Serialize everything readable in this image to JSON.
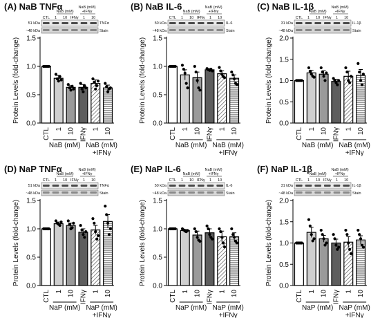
{
  "figure_panels": [
    {
      "label": "(A)",
      "title": "NaB TNFα",
      "ylabel": "Protein Levels (fold-change)",
      "ylim": [
        0,
        1.5
      ],
      "yticks": [
        "0.0",
        "0.5",
        "1.0",
        "1.5"
      ],
      "categories": [
        "CTL",
        "1",
        "10",
        "IFNγ",
        "1",
        "10"
      ],
      "treatment_label": "NaB (mM)",
      "combo_label": "NaB (mM)\n+IFNγ",
      "blot": {
        "kda_target": "51 kDa",
        "target": "TNFα",
        "kda_stain": "~48 kDa",
        "stain": "Stain",
        "header_treat": "NaB (mM)",
        "header_combo": "NaB (mM)\n+IFNγ",
        "lanes": [
          "CTL",
          "1",
          "10",
          "IFNγ",
          "1",
          "10"
        ]
      },
      "values": [
        1.0,
        0.79,
        0.63,
        0.63,
        0.7,
        0.62
      ],
      "errors": [
        0.0,
        0.05,
        0.03,
        0.05,
        0.06,
        0.05
      ],
      "points": [
        [
          1,
          1,
          1,
          1,
          1
        ],
        [
          0.86,
          0.78,
          0.74,
          0.82,
          0.76
        ],
        [
          0.68,
          0.62,
          0.58,
          0.65,
          0.6
        ],
        [
          0.7,
          0.6,
          0.55,
          0.66,
          0.62
        ],
        [
          0.78,
          0.72,
          0.6,
          0.66,
          0.74
        ],
        [
          0.7,
          0.64,
          0.55,
          0.6,
          0.62
        ]
      ]
    },
    {
      "label": "(B)",
      "title": "NaB IL-6",
      "ylabel": "Protein Levels (fold-change)",
      "ylim": [
        0,
        1.5
      ],
      "yticks": [
        "0.0",
        "0.5",
        "1.0",
        "1.5"
      ],
      "categories": [
        "CTL",
        "1",
        "10",
        "IFNγ",
        "1",
        "10"
      ],
      "treatment_label": "NaB (mM)",
      "combo_label": "NaB (mM)\n+IFNγ",
      "blot": {
        "kda_target": "50 kDa",
        "target": "IL-6",
        "kda_stain": "~48 kDa",
        "stain": "Stain",
        "header_treat": "NaB (mM)",
        "header_combo": "NaB (mM)\n+IFNγ",
        "lanes": [
          "CTL",
          "1",
          "10",
          "IFNγ",
          "1",
          "10"
        ]
      },
      "values": [
        1.0,
        0.85,
        0.8,
        0.94,
        0.87,
        0.79
      ],
      "errors": [
        0.0,
        0.09,
        0.1,
        0.02,
        0.05,
        0.06
      ],
      "points": [
        [
          1,
          1,
          1,
          1,
          1
        ],
        [
          1.02,
          0.95,
          0.88,
          0.7,
          0.62
        ],
        [
          1.0,
          0.9,
          0.75,
          0.62,
          0.58
        ],
        [
          0.96,
          0.94,
          0.93,
          0.95,
          0.92
        ],
        [
          0.98,
          0.92,
          0.86,
          0.82,
          0.8
        ],
        [
          0.9,
          0.85,
          0.78,
          0.7,
          0.68
        ]
      ]
    },
    {
      "label": "(C)",
      "title": "NaB IL-1β",
      "ylabel": "Protein Levels (fold-change)",
      "ylim": [
        0,
        2.0
      ],
      "yticks": [
        "0.0",
        "0.5",
        "1.0",
        "1.5",
        "2.0"
      ],
      "categories": [
        "CTL",
        "1",
        "10",
        "IFNγ",
        "1",
        "10"
      ],
      "treatment_label": "NaB (mM)",
      "combo_label": "NaB (mM)\n+IFNγ",
      "blot": {
        "kda_target": "31 kDa",
        "target": "IL-1β",
        "kda_stain": "~48 kDa",
        "stain": "Stain",
        "header_treat": "NaB (mM)",
        "header_combo": "NaB (mM)\n+IFNγ",
        "lanes": [
          "CTL",
          "1",
          "10",
          "IFNγ",
          "1",
          "10"
        ]
      },
      "values": [
        1.0,
        1.18,
        1.15,
        0.98,
        1.1,
        1.12
      ],
      "errors": [
        0.0,
        0.06,
        0.08,
        0.05,
        0.12,
        0.14
      ],
      "points": [
        [
          1,
          1,
          1,
          1,
          1
        ],
        [
          1.3,
          1.22,
          1.15,
          1.1,
          1.08
        ],
        [
          1.3,
          1.2,
          1.1,
          1.0,
          1.18
        ],
        [
          1.05,
          1.0,
          0.95,
          0.9,
          1.0
        ],
        [
          1.3,
          1.2,
          1.0,
          0.95,
          1.1
        ],
        [
          1.4,
          1.2,
          1.0,
          0.9,
          1.15
        ]
      ]
    },
    {
      "label": "(D)",
      "title": "NaP TNFα",
      "ylabel": "Protein Levels (fold-change)",
      "ylim": [
        0,
        1.5
      ],
      "yticks": [
        "0.0",
        "0.5",
        "1.0",
        "1.5"
      ],
      "categories": [
        "CTL",
        "1",
        "10",
        "IFNγ",
        "1",
        "10"
      ],
      "treatment_label": "NaP (mM)",
      "combo_label": "NaP (mM)\n+IFNγ",
      "blot": {
        "kda_target": "51 kDa",
        "target": "TNFα",
        "kda_stain": "~48 kDa",
        "stain": "Stain",
        "header_treat": "NaB (mM)",
        "header_combo": "NaB (mM)\n+IFNγ",
        "lanes": [
          "CTL",
          "1",
          "10",
          "IFNγ",
          "1",
          "10"
        ]
      },
      "values": [
        1.0,
        1.09,
        1.06,
        0.94,
        0.98,
        1.13
      ],
      "errors": [
        0.0,
        0.03,
        0.04,
        0.06,
        0.08,
        0.12
      ],
      "points": [
        [
          1,
          1,
          1,
          1,
          1
        ],
        [
          1.14,
          1.1,
          1.08,
          1.06,
          1.12
        ],
        [
          1.14,
          1.08,
          1.0,
          1.02,
          1.1
        ],
        [
          1.06,
          0.98,
          0.9,
          0.85,
          0.95
        ],
        [
          1.18,
          1.1,
          0.95,
          0.82,
          0.88
        ],
        [
          1.4,
          1.25,
          1.1,
          0.9,
          1.0
        ]
      ]
    },
    {
      "label": "(E)",
      "title": "NaP IL-6",
      "ylabel": "Protein Levels (fold-change)",
      "ylim": [
        0,
        1.5
      ],
      "yticks": [
        "0.0",
        "0.5",
        "1.0",
        "1.5"
      ],
      "categories": [
        "CTL",
        "1",
        "10",
        "IFNγ",
        "1",
        "10"
      ],
      "treatment_label": "NaP (mM)",
      "combo_label": "NaP (mM)\n+IFNγ",
      "blot": {
        "kda_target": "50 kDa",
        "target": "IL-6",
        "kda_stain": "~48 kDa",
        "stain": "Stain",
        "header_treat": "NaB (mM)",
        "header_combo": "NaB (mM)\n+IFNγ",
        "lanes": [
          "CTL",
          "1",
          "10",
          "IFNγ",
          "1",
          "10"
        ]
      },
      "values": [
        1.0,
        0.97,
        0.89,
        0.93,
        0.86,
        0.86
      ],
      "errors": [
        0.0,
        0.02,
        0.07,
        0.07,
        0.1,
        0.07
      ],
      "points": [
        [
          1,
          1,
          1,
          1,
          1
        ],
        [
          1.0,
          0.98,
          0.96,
          0.95,
          0.97
        ],
        [
          1.0,
          0.95,
          0.85,
          0.8,
          0.78
        ],
        [
          1.05,
          1.0,
          0.9,
          0.85,
          0.82
        ],
        [
          1.0,
          0.95,
          0.85,
          0.75,
          0.68
        ],
        [
          1.0,
          0.9,
          0.85,
          0.78,
          0.75
        ]
      ]
    },
    {
      "label": "(F)",
      "title": "NaP IL-1β",
      "ylabel": "Protein Levels (fold-change)",
      "ylim": [
        0,
        2.0
      ],
      "yticks": [
        "0.0",
        "0.5",
        "1.0",
        "1.5",
        "2.0"
      ],
      "categories": [
        "CTL",
        "1",
        "10",
        "IFNγ",
        "1",
        "10"
      ],
      "treatment_label": "NaP (mM)",
      "combo_label": "NaP (mM)\n+IFNγ",
      "blot": {
        "kda_target": "31 kDa",
        "target": "IL-1β",
        "kda_stain": "~48 kDa",
        "stain": "Stain",
        "header_treat": "NaB (mM)",
        "header_combo": "NaB (mM)\n+IFNγ",
        "lanes": [
          "CTL",
          "1",
          "10",
          "IFNγ",
          "1",
          "10"
        ]
      },
      "values": [
        1.0,
        1.25,
        1.1,
        1.0,
        1.02,
        1.07
      ],
      "errors": [
        0.0,
        0.12,
        0.08,
        0.09,
        0.13,
        0.1
      ],
      "points": [
        [
          1,
          1,
          1,
          1,
          1
        ],
        [
          1.55,
          1.4,
          1.2,
          1.05,
          1.1
        ],
        [
          1.3,
          1.2,
          1.1,
          0.95,
          1.0
        ],
        [
          1.2,
          1.1,
          0.95,
          0.85,
          0.9
        ],
        [
          1.3,
          1.2,
          1.0,
          0.85,
          0.75
        ],
        [
          1.3,
          1.2,
          1.1,
          0.95,
          0.9
        ]
      ]
    }
  ],
  "chart_data": [
    {
      "type": "bar",
      "title": "NaB TNFα",
      "ylabel": "Protein Levels (fold-change)",
      "categories": [
        "CTL",
        "NaB 1",
        "NaB 10",
        "IFNγ",
        "NaB 1 +IFNγ",
        "NaB 10 +IFNγ"
      ],
      "values": [
        1.0,
        0.79,
        0.63,
        0.63,
        0.7,
        0.62
      ],
      "ylim": [
        0,
        1.5
      ]
    },
    {
      "type": "bar",
      "title": "NaB IL-6",
      "ylabel": "Protein Levels (fold-change)",
      "categories": [
        "CTL",
        "NaB 1",
        "NaB 10",
        "IFNγ",
        "NaB 1 +IFNγ",
        "NaB 10 +IFNγ"
      ],
      "values": [
        1.0,
        0.85,
        0.8,
        0.94,
        0.87,
        0.79
      ],
      "ylim": [
        0,
        1.5
      ]
    },
    {
      "type": "bar",
      "title": "NaB IL-1β",
      "ylabel": "Protein Levels (fold-change)",
      "categories": [
        "CTL",
        "NaB 1",
        "NaB 10",
        "IFNγ",
        "NaB 1 +IFNγ",
        "NaB 10 +IFNγ"
      ],
      "values": [
        1.0,
        1.18,
        1.15,
        0.98,
        1.1,
        1.12
      ],
      "ylim": [
        0,
        2.0
      ]
    },
    {
      "type": "bar",
      "title": "NaP TNFα",
      "ylabel": "Protein Levels (fold-change)",
      "categories": [
        "CTL",
        "NaP 1",
        "NaP 10",
        "IFNγ",
        "NaP 1 +IFNγ",
        "NaP 10 +IFNγ"
      ],
      "values": [
        1.0,
        1.09,
        1.06,
        0.94,
        0.98,
        1.13
      ],
      "ylim": [
        0,
        1.5
      ]
    },
    {
      "type": "bar",
      "title": "NaP IL-6",
      "ylabel": "Protein Levels (fold-change)",
      "categories": [
        "CTL",
        "NaP 1",
        "NaP 10",
        "IFNγ",
        "NaP 1 +IFNγ",
        "NaP 10 +IFNγ"
      ],
      "values": [
        1.0,
        0.97,
        0.89,
        0.93,
        0.86,
        0.86
      ],
      "ylim": [
        0,
        1.5
      ]
    },
    {
      "type": "bar",
      "title": "NaP IL-1β",
      "ylabel": "Protein Levels (fold-change)",
      "categories": [
        "CTL",
        "NaP 1",
        "NaP 10",
        "IFNγ",
        "NaP 1 +IFNγ",
        "NaP 10 +IFNγ"
      ],
      "values": [
        1.0,
        1.25,
        1.1,
        1.0,
        1.02,
        1.07
      ],
      "ylim": [
        0,
        2.0
      ]
    }
  ],
  "style": {
    "bar_colors": [
      "#ffffff",
      "#cfcfcf",
      "#9a9a9a",
      "#5e5e5e",
      "hatch",
      "stripe"
    ],
    "edge": "#000000"
  }
}
